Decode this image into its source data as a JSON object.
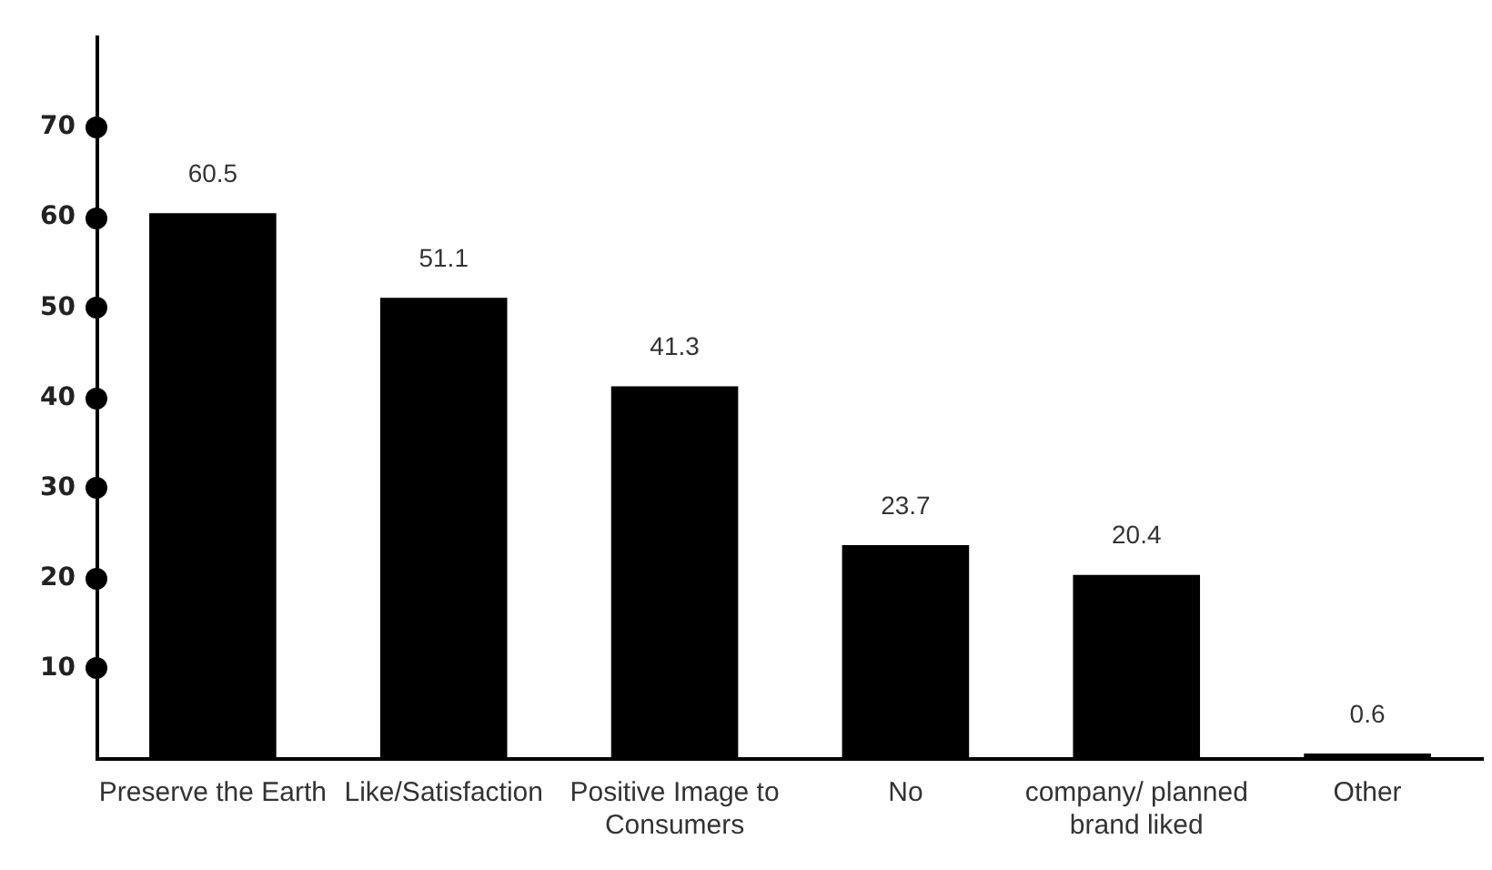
{
  "chart_data": {
    "type": "bar",
    "categories": [
      "Preserve the Earth",
      "Like/Satisfaction",
      "Positive Image to Consumers",
      "No",
      "company/ planned brand liked",
      "Other"
    ],
    "values": [
      60.5,
      51.1,
      41.3,
      23.7,
      20.4,
      0.6
    ],
    "color": "#000000",
    "ylim": [
      0,
      80
    ],
    "yticks": [
      10,
      20,
      30,
      40,
      50,
      60,
      70
    ],
    "data_labels": true,
    "grid": false,
    "legend": false
  }
}
